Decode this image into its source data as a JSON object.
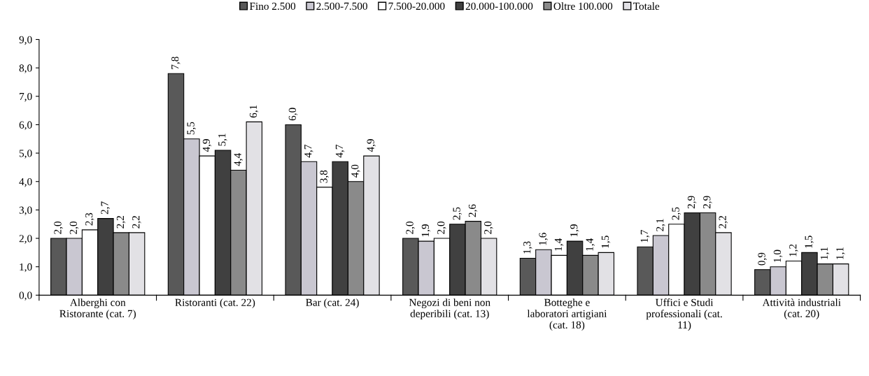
{
  "chart_data": {
    "type": "bar",
    "categories": [
      "Alberghi con\nRistorante (cat. 7)",
      "Ristoranti (cat. 22)",
      "Bar (cat. 24)",
      "Negozi di beni non\ndeperibili (cat. 13)",
      "Botteghe e\nlaboratori artigiani\n(cat. 18)",
      "Uffici e Studi\nprofessionali (cat.\n11)",
      "Attività industriali\n(cat. 20)"
    ],
    "series": [
      {
        "name": "Fino 2.500",
        "color": "#595959",
        "values": [
          2.0,
          7.8,
          6.0,
          2.0,
          1.3,
          1.7,
          0.9
        ],
        "value_labels": [
          "2,0",
          "7,8",
          "6,0",
          "2,0",
          "1,3",
          "1,7",
          "0,9"
        ]
      },
      {
        "name": "2.500-7.500",
        "color": "#c9c7d1",
        "values": [
          2.0,
          5.5,
          4.7,
          1.9,
          1.6,
          2.1,
          1.0
        ],
        "value_labels": [
          "2,0",
          "5,5",
          "4,7",
          "1,9",
          "1,6",
          "2,1",
          "1,0"
        ]
      },
      {
        "name": "7.500-20.000",
        "color": "#ffffff",
        "values": [
          2.3,
          4.9,
          3.8,
          2.0,
          1.4,
          2.5,
          1.2
        ],
        "value_labels": [
          "2,3",
          "4,9",
          "3,8",
          "2,0",
          "1,4",
          "2,5",
          "1,2"
        ]
      },
      {
        "name": "20.000-100.000",
        "color": "#404040",
        "values": [
          2.7,
          5.1,
          4.7,
          2.5,
          1.9,
          2.9,
          1.5
        ],
        "value_labels": [
          "2,7",
          "5,1",
          "4,7",
          "2,5",
          "1,9",
          "2,9",
          "1,5"
        ]
      },
      {
        "name": "Oltre 100.000",
        "color": "#8a8a8a",
        "values": [
          2.2,
          4.4,
          4.0,
          2.6,
          1.4,
          2.9,
          1.1
        ],
        "value_labels": [
          "2,2",
          "4,4",
          "4,0",
          "2,6",
          "1,4",
          "2,9",
          "1,1"
        ]
      },
      {
        "name": "Totale",
        "color": "#e2e1e5",
        "values": [
          2.2,
          6.1,
          4.9,
          2.0,
          1.5,
          2.2,
          1.1
        ],
        "value_labels": [
          "2,2",
          "6,1",
          "4,9",
          "2,0",
          "1,5",
          "2,2",
          "1,1"
        ]
      }
    ],
    "ylim": [
      0,
      9
    ],
    "yticks": [
      {
        "value": 0,
        "label": "0,0"
      },
      {
        "value": 1,
        "label": "1,0"
      },
      {
        "value": 2,
        "label": "2,0"
      },
      {
        "value": 3,
        "label": "3,0"
      },
      {
        "value": 4,
        "label": "4,0"
      },
      {
        "value": 5,
        "label": "5,0"
      },
      {
        "value": 6,
        "label": "6,0"
      },
      {
        "value": 7,
        "label": "7,0"
      },
      {
        "value": 8,
        "label": "8,0"
      },
      {
        "value": 9,
        "label": "9,0"
      }
    ],
    "grid": false,
    "legend": "top"
  }
}
